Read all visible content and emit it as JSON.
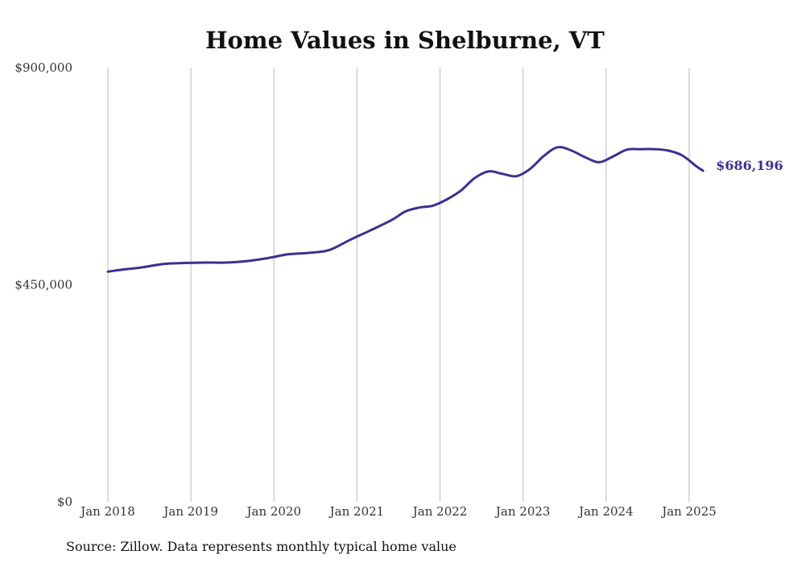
{
  "chart_data": {
    "type": "line",
    "title": "Home Values in Shelburne, VT",
    "source_note": "Source: Zillow. Data represents monthly typical home value",
    "xlabel": "",
    "ylabel": "",
    "ylim": [
      0,
      900000
    ],
    "y_ticks": [
      {
        "value": 0,
        "label": "$0"
      },
      {
        "value": 450000,
        "label": "$450,000"
      },
      {
        "value": 900000,
        "label": "$900,000"
      }
    ],
    "x_ticks": [
      {
        "value": "2018-01",
        "label": "Jan 2018"
      },
      {
        "value": "2019-01",
        "label": "Jan 2019"
      },
      {
        "value": "2020-01",
        "label": "Jan 2020"
      },
      {
        "value": "2021-01",
        "label": "Jan 2021"
      },
      {
        "value": "2022-01",
        "label": "Jan 2022"
      },
      {
        "value": "2023-01",
        "label": "Jan 2023"
      },
      {
        "value": "2024-01",
        "label": "Jan 2024"
      },
      {
        "value": "2025-01",
        "label": "Jan 2025"
      }
    ],
    "grid": {
      "vertical": true,
      "horizontal": false
    },
    "line_color": "#3a3190",
    "end_label": "$686,196",
    "series": [
      {
        "x": [
          "2018-01",
          "2018-03",
          "2018-06",
          "2018-09",
          "2018-12",
          "2019-03",
          "2019-06",
          "2019-09",
          "2019-12",
          "2020-03",
          "2020-06",
          "2020-09",
          "2020-12",
          "2021-03",
          "2021-06",
          "2021-08",
          "2021-10",
          "2021-12",
          "2022-02",
          "2022-04",
          "2022-06",
          "2022-08",
          "2022-10",
          "2022-12",
          "2023-02",
          "2023-04",
          "2023-06",
          "2023-08",
          "2023-10",
          "2023-12",
          "2024-02",
          "2024-04",
          "2024-06",
          "2024-08",
          "2024-10",
          "2024-12",
          "2025-02",
          "2025-03"
        ],
        "values": [
          477000,
          481000,
          486000,
          493000,
          495000,
          496000,
          496000,
          499000,
          505000,
          513000,
          516000,
          522000,
          543000,
          563000,
          584000,
          602000,
          610000,
          614000,
          627000,
          645000,
          671000,
          685000,
          680000,
          675000,
          690000,
          717000,
          735000,
          728000,
          714000,
          704000,
          716000,
          730000,
          731000,
          731000,
          728000,
          718000,
          696000,
          686196
        ]
      }
    ]
  }
}
